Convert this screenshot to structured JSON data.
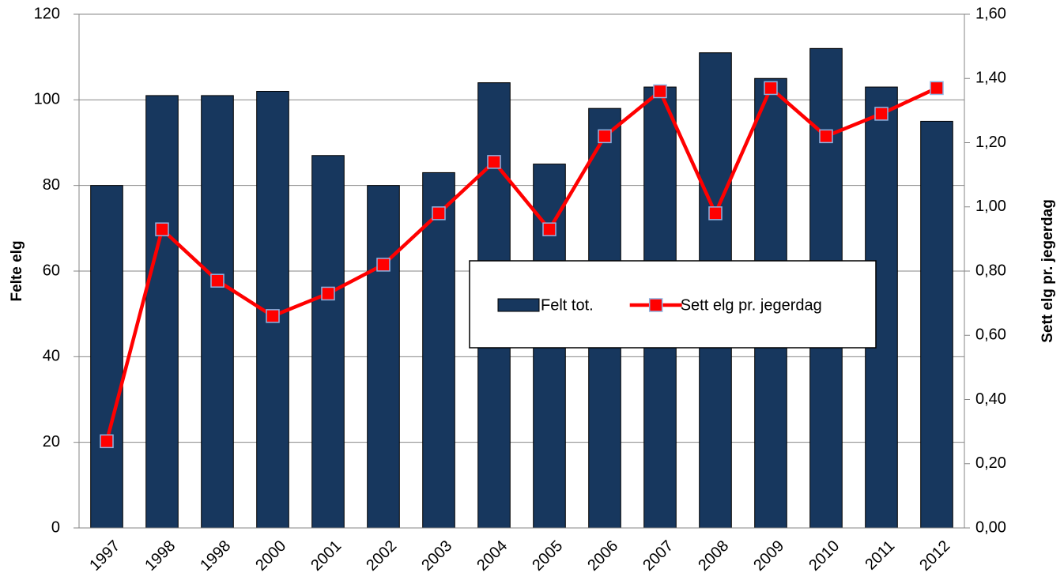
{
  "chart_data": {
    "type": "bar-line",
    "categories": [
      "1997",
      "1998",
      "1998",
      "2000",
      "2001",
      "2002",
      "2003",
      "2004",
      "2005",
      "2006",
      "2007",
      "2008",
      "2009",
      "2010",
      "2011",
      "2012"
    ],
    "series": [
      {
        "name": "Felt tot.",
        "type": "bar",
        "color": "#17375e",
        "values": [
          80,
          101,
          101,
          102,
          87,
          80,
          83,
          104,
          85,
          98,
          103,
          111,
          105,
          112,
          103,
          95
        ]
      },
      {
        "name": "Sett elg pr. jegerdag",
        "type": "line",
        "axis": "y2",
        "color": "#ff0000",
        "values": [
          0.27,
          0.93,
          0.77,
          0.66,
          0.73,
          0.82,
          0.98,
          1.14,
          0.93,
          1.22,
          1.36,
          0.98,
          1.37,
          1.22,
          1.29,
          1.37
        ]
      }
    ],
    "ylabel": "Felte elg",
    "y2label": "Sett elg pr. jegerdag",
    "ylim": [
      0,
      120
    ],
    "yticks": [
      0,
      20,
      40,
      60,
      80,
      100,
      120
    ],
    "y2lim": [
      0,
      1.6
    ],
    "y2ticks": [
      {
        "value": 0,
        "label": "0,00"
      },
      {
        "value": 0.2,
        "label": "0,20"
      },
      {
        "value": 0.4,
        "label": "0,40"
      },
      {
        "value": 0.6,
        "label": "0,60"
      },
      {
        "value": 0.8,
        "label": "0,80"
      },
      {
        "value": 1,
        "label": "1,00"
      },
      {
        "value": 1.2,
        "label": "1,20"
      },
      {
        "value": 1.4,
        "label": "1,40"
      },
      {
        "value": 1.6,
        "label": "1,60"
      }
    ],
    "grid": true,
    "legend": "center-right"
  }
}
